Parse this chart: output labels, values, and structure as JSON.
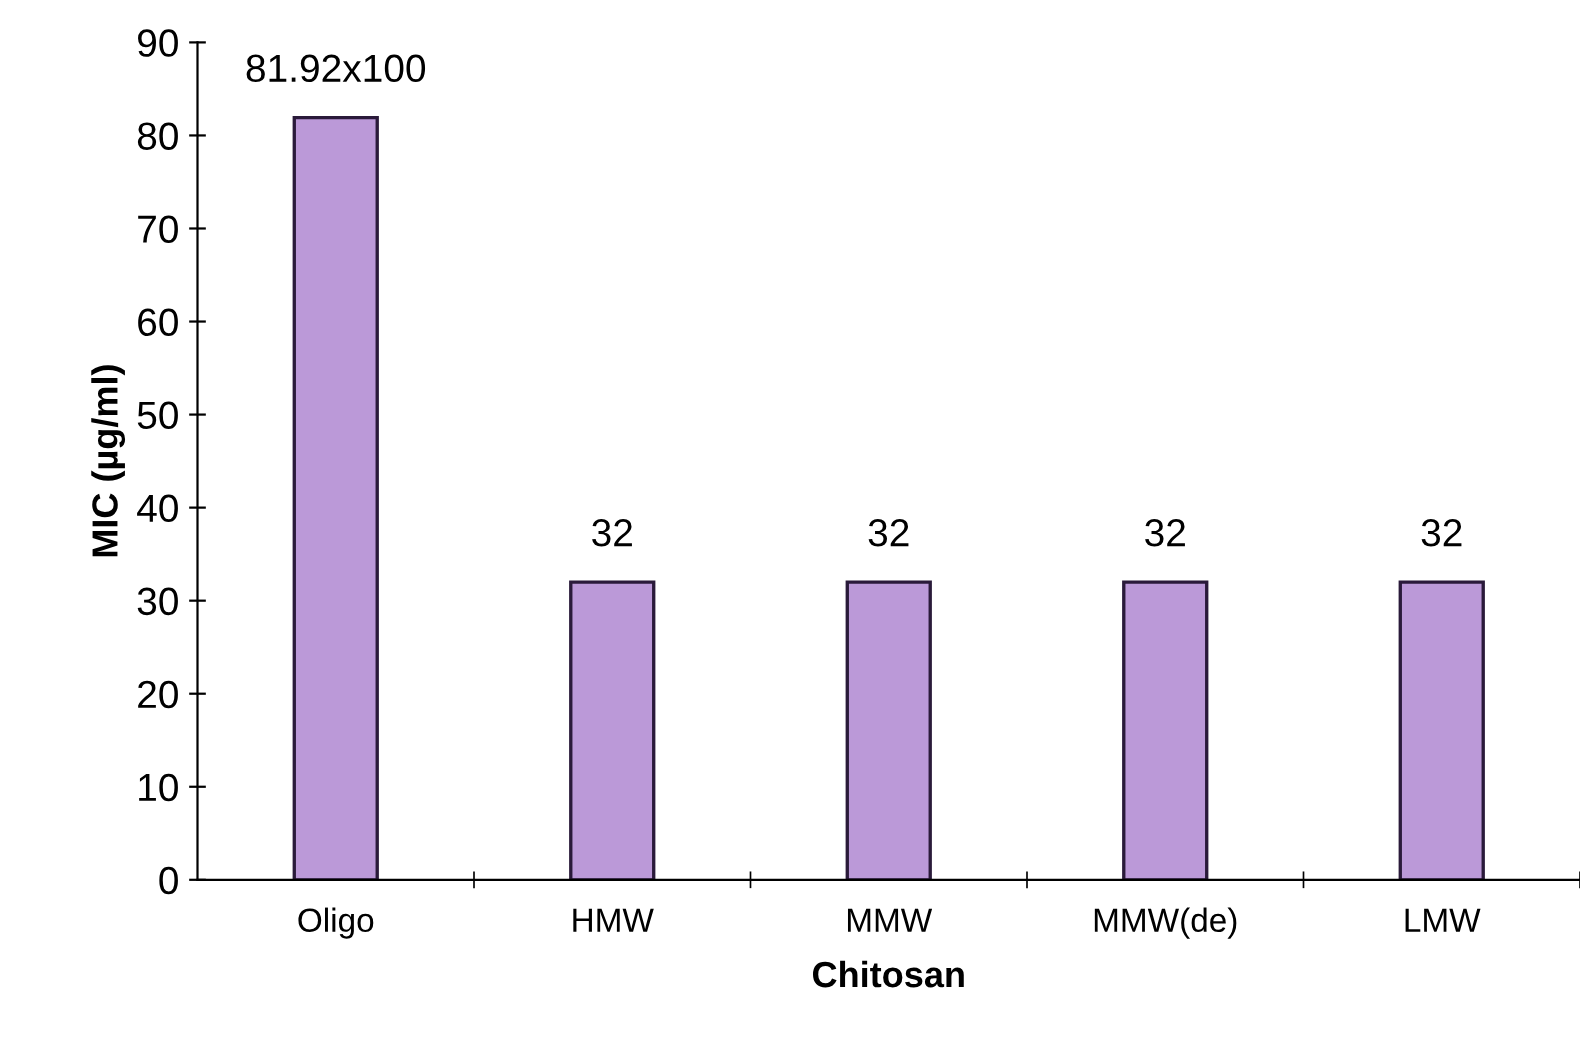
{
  "chart_data": {
    "type": "bar",
    "xlabel": "Chitosan",
    "ylabel": "MIC (µg/ml)",
    "categories": [
      "Oligo",
      "HMW",
      "MMW",
      "MMW(de)",
      "LMW"
    ],
    "values": [
      81.92,
      32,
      32,
      32,
      32
    ],
    "value_labels": [
      "81.92x100",
      "32",
      "32",
      "32",
      "32"
    ],
    "color": "#bb99d8",
    "ylim": [
      0,
      90
    ],
    "yticks": [
      0,
      10,
      20,
      30,
      40,
      50,
      60,
      70,
      80,
      90
    ],
    "grid": false
  }
}
